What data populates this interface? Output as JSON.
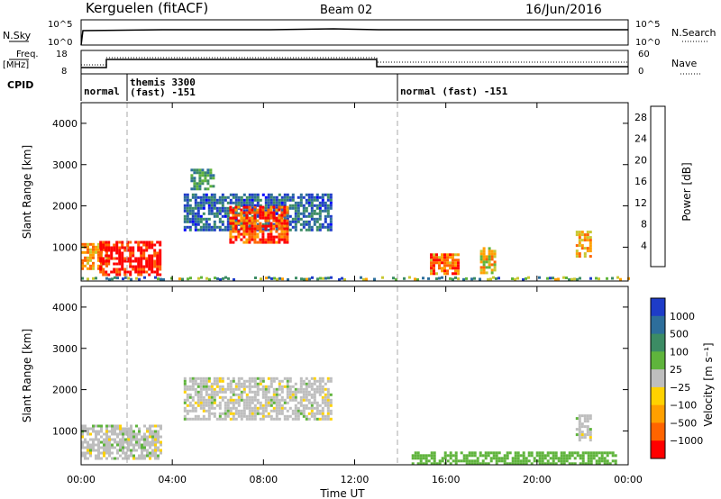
{
  "header": {
    "title": "Kerguelen (fitACF)",
    "beam": "Beam 02",
    "date": "16/Jun/2016"
  },
  "top_panels": {
    "nsky_label": "N.Sky",
    "nsearch_label": "N.Search",
    "nsky_ticks": [
      "10^5",
      "10^0"
    ],
    "freq_label_1": "Freq.",
    "freq_label_2": "[MHz]",
    "freq_ticks": [
      "18",
      "8"
    ],
    "nave_ticks": [
      "60",
      "0"
    ],
    "nave_label": "Nave",
    "cpid_label": "CPID",
    "cpid_modes": [
      {
        "text": "normal",
        "start": 0.0
      },
      {
        "text": "themis 3300",
        "text2": "(fast) -151",
        "start": 1.9
      },
      {
        "text": "normal (fast) -151",
        "start": 14.0
      }
    ]
  },
  "colors": {
    "power_scale": [
      "#0000ff",
      "#1e3cc8",
      "#2d6e9b",
      "#3c8c64",
      "#5fb43c",
      "#c8c832",
      "#ffa000",
      "#ff6400",
      "#ff0000"
    ],
    "velocity_scale": [
      "#1e3cc8",
      "#2d6e9b",
      "#3c8c64",
      "#5fb43c",
      "#bebebe",
      "#ffd200",
      "#ffa000",
      "#ff6400",
      "#ff0000"
    ],
    "ground_scatter": "#bebebe"
  },
  "chart_data": [
    {
      "type": "heatmap",
      "name": "power",
      "ylabel": "Slant Range [km]",
      "xlabel": "",
      "ylim": [
        180,
        4500
      ],
      "xlim": [
        0,
        24
      ],
      "y_ticks": [
        1000,
        2000,
        3000,
        4000
      ],
      "colorbar_label": "Power [dB]",
      "colorbar_ticks": [
        "4",
        "8",
        "12",
        "16",
        "20",
        "24",
        "28"
      ],
      "colorbar_range": [
        0,
        30
      ],
      "echo_regions": [
        {
          "t0": 0.0,
          "t1": 1.1,
          "r0": 500,
          "r1": 1100,
          "level": 22
        },
        {
          "t0": 0.8,
          "t1": 3.5,
          "r0": 350,
          "r1": 1150,
          "level": 29
        },
        {
          "t0": 4.5,
          "t1": 11.0,
          "r0": 1400,
          "r1": 2300,
          "level": 8
        },
        {
          "t0": 6.5,
          "t1": 9.0,
          "r0": 1100,
          "r1": 2000,
          "level": 26
        },
        {
          "t0": 4.8,
          "t1": 5.8,
          "r0": 2400,
          "r1": 2900,
          "level": 12
        },
        {
          "t0": 15.3,
          "t1": 16.5,
          "r0": 350,
          "r1": 850,
          "level": 24
        },
        {
          "t0": 17.5,
          "t1": 18.2,
          "r0": 400,
          "r1": 1000,
          "level": 20
        },
        {
          "t0": 21.7,
          "t1": 22.3,
          "r0": 800,
          "r1": 1400,
          "level": 22
        }
      ]
    },
    {
      "type": "heatmap",
      "name": "velocity",
      "ylabel": "Slant Range [km]",
      "xlabel": "Time UT",
      "ylim": [
        180,
        4500
      ],
      "xlim": [
        0,
        24
      ],
      "x_ticks": [
        "00:00",
        "04:00",
        "08:00",
        "12:00",
        "16:00",
        "20:00",
        "00:00"
      ],
      "y_ticks": [
        1000,
        2000,
        3000,
        4000
      ],
      "colorbar_label": "Velocity [m s⁻¹]",
      "colorbar_ticks": [
        "1000",
        "500",
        "100",
        "25",
        "−25",
        "−100",
        "−500",
        "−1000"
      ],
      "echo_regions": [
        {
          "t0": 0.0,
          "t1": 3.5,
          "r0": 350,
          "r1": 1150,
          "v": 0
        },
        {
          "t0": 4.5,
          "t1": 11.0,
          "r0": 1300,
          "r1": 2300,
          "v": 0
        },
        {
          "t0": 14.5,
          "t1": 23.5,
          "r0": 200,
          "r1": 500,
          "v": 60
        },
        {
          "t0": 21.7,
          "t1": 22.3,
          "r0": 800,
          "r1": 1400,
          "v": 0
        }
      ]
    }
  ]
}
